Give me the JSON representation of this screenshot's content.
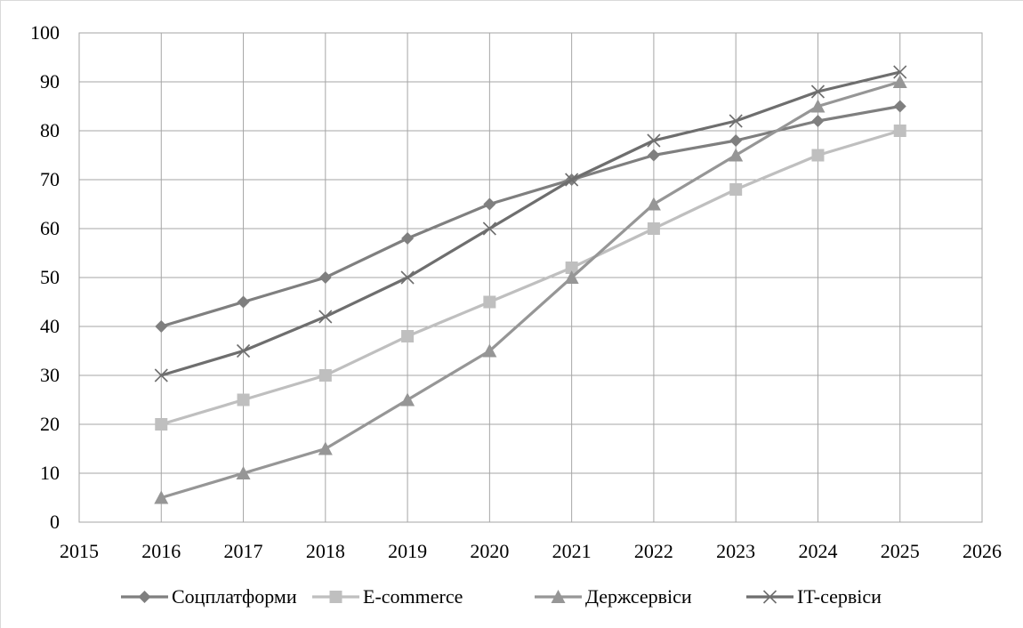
{
  "chart_data": {
    "type": "line",
    "title": "",
    "xlabel": "",
    "ylabel": "",
    "xlim": [
      2015,
      2026
    ],
    "ylim": [
      0,
      100
    ],
    "x_ticks": [
      2015,
      2016,
      2017,
      2018,
      2019,
      2020,
      2021,
      2022,
      2023,
      2024,
      2025,
      2026
    ],
    "y_ticks": [
      0,
      10,
      20,
      30,
      40,
      50,
      60,
      70,
      80,
      90,
      100
    ],
    "grid": true,
    "legend_position": "bottom",
    "x": [
      2016,
      2017,
      2018,
      2019,
      2020,
      2021,
      2022,
      2023,
      2024,
      2025
    ],
    "series": [
      {
        "name": "Соцплатформи",
        "marker": "diamond",
        "color": "#7f7f7f",
        "values": [
          40,
          45,
          50,
          58,
          65,
          70,
          75,
          78,
          82,
          85
        ]
      },
      {
        "name": "E-commerce",
        "marker": "square",
        "color": "#bfbfbf",
        "values": [
          20,
          25,
          30,
          38,
          45,
          52,
          60,
          68,
          75,
          80
        ]
      },
      {
        "name": "Держсервіси",
        "marker": "triangle",
        "color": "#969696",
        "values": [
          5,
          10,
          15,
          25,
          35,
          50,
          65,
          75,
          85,
          90
        ]
      },
      {
        "name": "IT-сервіси",
        "marker": "x",
        "color": "#6e6e6e",
        "values": [
          30,
          35,
          42,
          50,
          60,
          70,
          78,
          82,
          88,
          92
        ]
      }
    ]
  }
}
